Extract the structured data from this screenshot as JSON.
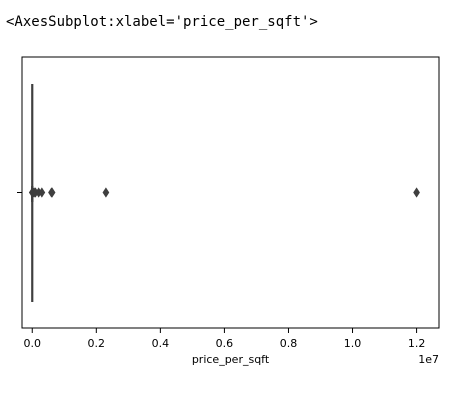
{
  "output_repr": "<AxesSubplot:xlabel='price_per_sqft'>",
  "chart_data": {
    "type": "box",
    "orientation": "horizontal",
    "xlabel": "price_per_sqft",
    "ylabel": "",
    "offset_text": "1e7",
    "x_tick_values": [
      0.0,
      0.2,
      0.4,
      0.6,
      0.8,
      1.0,
      1.2
    ],
    "x_tick_labels": [
      "0.0",
      "0.2",
      "0.4",
      "0.6",
      "0.8",
      "1.0",
      "1.2"
    ],
    "x_scale_factor": 10000000,
    "xlim": [
      -0.032,
      1.27
    ],
    "box": {
      "min": 0.0,
      "q1": 0.0,
      "median": 0.0,
      "q3": 0.0,
      "max": 0.0
    },
    "outliers": [
      0.0,
      0.01,
      0.02,
      0.03,
      0.06,
      0.1,
      0.2,
      0.3,
      0.6,
      0.62,
      2.3,
      12.0
    ],
    "outliers_unit": "1e6",
    "colors": {
      "box_edge": "#3f3f3f",
      "flier": "#3f3f3f",
      "spine": "#000000"
    }
  }
}
